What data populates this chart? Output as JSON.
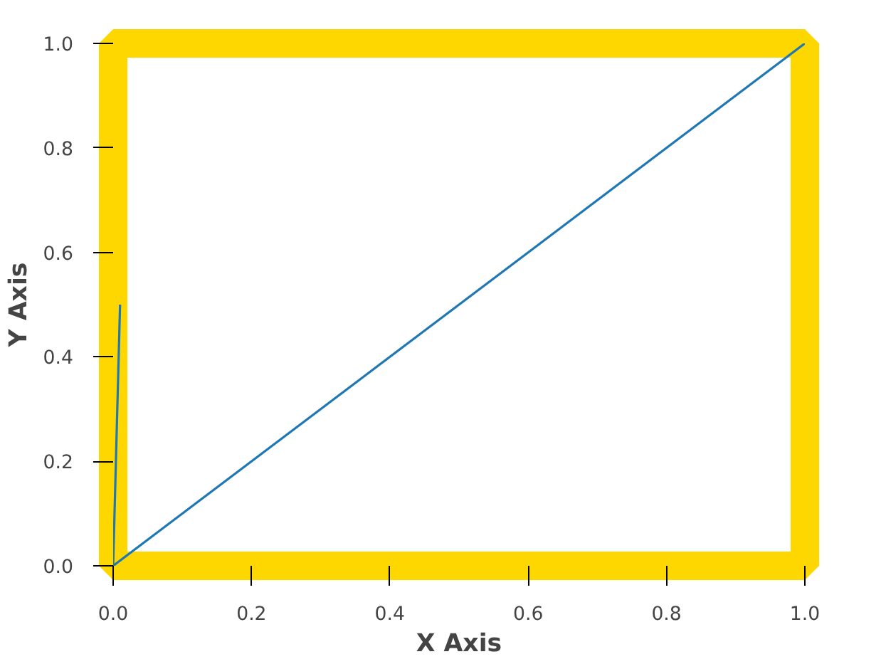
{
  "chart_data": {
    "type": "line",
    "xlabel": "X Axis",
    "ylabel": "Y Axis",
    "series": [
      {
        "color": "#1f77b4",
        "x": [
          0,
          1
        ],
        "values": [
          0,
          1
        ]
      },
      {
        "color": "#1f77b4",
        "x": [
          0,
          0.01
        ],
        "values": [
          0,
          0.5
        ]
      }
    ],
    "xlim": [
      0,
      1
    ],
    "ylim": [
      0,
      1
    ],
    "xticks": [
      {
        "value": 0,
        "label": "0.0"
      },
      {
        "value": 0.2,
        "label": "0.2"
      },
      {
        "value": 0.4,
        "label": "0.4"
      },
      {
        "value": 0.6,
        "label": "0.6"
      },
      {
        "value": 0.8,
        "label": "0.8"
      },
      {
        "value": 1,
        "label": "1.0"
      }
    ],
    "yticks": [
      {
        "value": 0,
        "label": "0.0"
      },
      {
        "value": 0.2,
        "label": "0.2"
      },
      {
        "value": 0.4,
        "label": "0.4"
      },
      {
        "value": 0.6,
        "label": "0.6"
      },
      {
        "value": 0.8,
        "label": "0.8"
      },
      {
        "value": 1,
        "label": "1.0"
      }
    ],
    "grid": false
  }
}
